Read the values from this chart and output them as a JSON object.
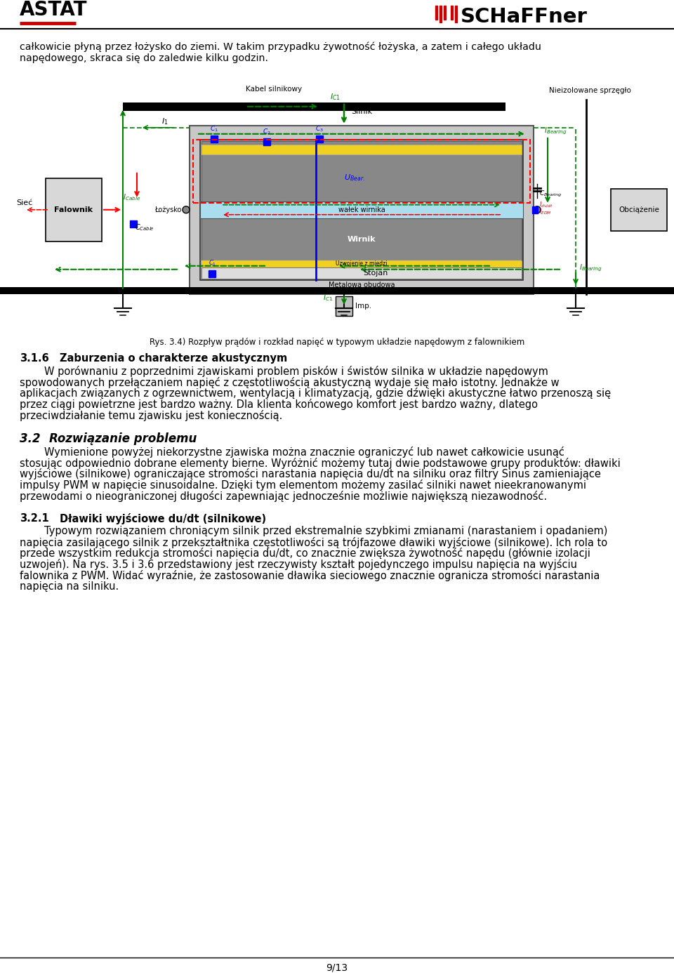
{
  "bg_color": "#ffffff",
  "page_number": "9/13",
  "intro_line1": "całkowicie płyną przez łożysko do ziemi. W takim przypadku żywotność łożyska, a zatem i całego układu",
  "intro_line2": "napędowego, skraca się do zaledwie kilku godzin.",
  "caption_text": "Rys. 3.4) Rozpływ prądów i rozkład napięć w typowym układzie napędowym z falownikiem",
  "section_316_num": "3.1.6",
  "section_316_title": "Zaburzenia o charakterze akustycznym",
  "section_316_body_lines": [
    "\tW porównaniu z poprzednimi zjawiskami problem pisków i świstów silnika w układzie napędowym",
    "spowodowanych przełączaniem napięć z częstotliwością akustyczną wydaje się mało istotny. Jednakże w",
    "aplikacjach związanych z ogrzewnictwem, wentylacją i klimatyzacją, gdzie dźwięki akustyczne łatwo przenoszą się",
    "przez ciągi powietrzne jest bardzo ważny. Dla klienta końcowego komfort jest bardzo ważny, dlatego",
    "przeciwdziałanie temu zjawisku jest koniecznością."
  ],
  "section_32_num": "3.2",
  "section_32_title": "Rozwiązanie problemu",
  "section_32_body_lines": [
    "\tWymienione powyżej niekorzystne zjawiska można znacznie ograniczyć lub nawet całkowicie usunąć",
    "stosując odpowiednio dobrane elementy bierne. Wyróżnić możemy tutaj dwie podstawowe grupy produktów: dławiki",
    "wyjściowe (silnikowe) ograniczające stromości narastania napięcia du/dt na silniku oraz filtry Sinus zamieniające",
    "impulsy PWM w napięcie sinusoidalne. Dzięki tym elementom możemy zasilać silniki nawet nieekranowanymi",
    "przewodami o nieograniczonej długości zapewniając jednocześnie możliwie największą niezawodność."
  ],
  "section_321_num": "3.2.1",
  "section_321_title": "Dławiki wyjściowe du/dt (silnikowe)",
  "section_321_body_lines": [
    "\tTypowym rozwiązaniem chroniącym silnik przed ekstremalnie szybkimi zmianami (narastaniem i opadaniem)",
    "napięcia zasilającego silnik z przekształtnika częstotliwości są trójfazowe dławiki wyjściowe (silnikowe). Ich rola to",
    "przede wszystkim redukcja stromości napięcia du/dt, co znacznie zwiększa żywotność napędu (głównie izolacji",
    "uzwojeń). Na rys. 3.5 i 3.6 przedstawiony jest rzeczywisty kształt pojedynczego impulsu napięcia na wyjściu",
    "falownika z PWM. Widać wyraźnie, że zastosowanie dławika sieciowego znacznie ogranicza stromości narastania",
    "napięcia na silniku."
  ]
}
